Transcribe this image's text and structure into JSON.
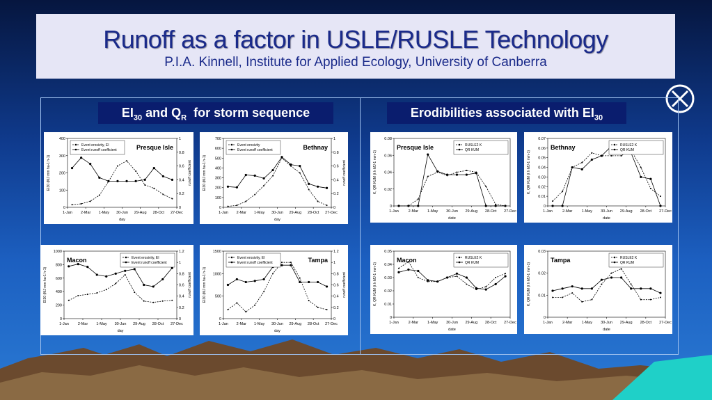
{
  "slide": {
    "title": "Runoff as a factor in USLE/RUSLE Technology",
    "subtitle": "P.I.A. Kinnell, Institute for Applied Ecology, University of Canberra",
    "heading_left": [
      "EI",
      "30",
      " and Q",
      "R",
      "  for storm sequence"
    ],
    "heading_right": [
      "Erodibilities associated with EI",
      "30"
    ]
  },
  "chart_data": [
    {
      "type": "line",
      "annotation": "Presque Isle",
      "annotation_corner": "upper right",
      "legend": "upper left",
      "xlabel": "day",
      "ylabel": "EI30 (MJ mm ha-1 h-1)",
      "y2label": "runoff coefficient",
      "x": [
        15,
        45,
        75,
        105,
        135,
        165,
        195,
        225,
        255,
        285,
        315,
        345
      ],
      "xlim": [
        0,
        360
      ],
      "xticks": [
        {
          "value": 0,
          "label": "1-Jan"
        },
        {
          "value": 60,
          "label": "2-Mar"
        },
        {
          "value": 120,
          "label": "1-May"
        },
        {
          "value": 180,
          "label": "30-Jun"
        },
        {
          "value": 240,
          "label": "29-Aug"
        },
        {
          "value": 300,
          "label": "28-Oct"
        },
        {
          "value": 360,
          "label": "27-Dec"
        }
      ],
      "ylim": [
        0,
        400
      ],
      "yticks": [
        0,
        100,
        200,
        300,
        400
      ],
      "y2lim": [
        0,
        1
      ],
      "y2ticks": [
        0,
        0.2,
        0.4,
        0.6,
        0.8,
        1
      ],
      "series": [
        {
          "name": "Event erosivity, EI",
          "color": "#000000",
          "line_style": "dashed",
          "values": [
            15,
            20,
            35,
            70,
            150,
            240,
            270,
            210,
            130,
            110,
            75,
            50
          ]
        },
        {
          "name": "Event runoff coefficient",
          "color": "#000000",
          "line_style": "solid",
          "axis": "y2",
          "values": [
            0.57,
            0.72,
            0.63,
            0.43,
            0.38,
            0.38,
            0.38,
            0.38,
            0.4,
            0.57,
            0.45,
            0.4
          ]
        }
      ]
    },
    {
      "type": "line",
      "annotation": "Bethnay",
      "annotation_corner": "upper right",
      "legend": "upper left",
      "xlabel": "day",
      "ylabel": "EI30 (MJ mm ha-1 h-1)",
      "y2label": "runoff coefficient",
      "x": [
        15,
        45,
        75,
        105,
        135,
        165,
        195,
        225,
        255,
        285,
        315,
        345
      ],
      "xlim": [
        0,
        360
      ],
      "xticks": [
        {
          "value": 0,
          "label": "1-Jan"
        },
        {
          "value": 60,
          "label": "2-Mar"
        },
        {
          "value": 120,
          "label": "1-May"
        },
        {
          "value": 180,
          "label": "30-Jun"
        },
        {
          "value": 240,
          "label": "29-Aug"
        },
        {
          "value": 300,
          "label": "28-Oct"
        },
        {
          "value": 360,
          "label": "27-Dec"
        }
      ],
      "ylim": [
        0,
        700
      ],
      "yticks": [
        0,
        100,
        200,
        300,
        400,
        500,
        600,
        700
      ],
      "y2lim": [
        0,
        1
      ],
      "y2ticks": [
        0,
        0.2,
        0.4,
        0.6,
        0.8,
        1
      ],
      "series": [
        {
          "name": "Event erosivity",
          "color": "#000000",
          "line_style": "dashed",
          "values": [
            10,
            20,
            60,
            130,
            220,
            320,
            500,
            420,
            350,
            180,
            60,
            20
          ]
        },
        {
          "name": "Event runoff coefficient",
          "color": "#000000",
          "line_style": "solid",
          "axis": "y2",
          "values": [
            0.3,
            0.29,
            0.47,
            0.46,
            0.42,
            0.54,
            0.73,
            0.62,
            0.6,
            0.34,
            0.3,
            0.28
          ]
        }
      ]
    },
    {
      "type": "line",
      "annotation": "Macon",
      "annotation_corner": "upper left",
      "legend": "upper right",
      "xlabel": "day",
      "ylabel": "EI30 (MJ mm ha-1 h-1)",
      "y2label": "runoff coefficient",
      "x": [
        15,
        45,
        75,
        105,
        135,
        165,
        195,
        225,
        255,
        285,
        315,
        345
      ],
      "xlim": [
        0,
        360
      ],
      "xticks": [
        {
          "value": 0,
          "label": "1-Jan"
        },
        {
          "value": 60,
          "label": "2-Mar"
        },
        {
          "value": 120,
          "label": "1-May"
        },
        {
          "value": 180,
          "label": "30-Jun"
        },
        {
          "value": 240,
          "label": "29-Aug"
        },
        {
          "value": 300,
          "label": "28-Oct"
        },
        {
          "value": 360,
          "label": "27-Dec"
        }
      ],
      "ylim": [
        0,
        1000
      ],
      "yticks": [
        0,
        200,
        400,
        600,
        800,
        1000
      ],
      "y2lim": [
        0,
        1.2
      ],
      "y2ticks": [
        0,
        0.2,
        0.4,
        0.6,
        0.8,
        1,
        1.2
      ],
      "series": [
        {
          "name": "Event erosivity, EI",
          "color": "#000000",
          "line_style": "dashed",
          "values": [
            270,
            340,
            360,
            380,
            430,
            520,
            650,
            390,
            260,
            240,
            260,
            270
          ]
        },
        {
          "name": "Event runoff coefficient",
          "color": "#000000",
          "line_style": "solid",
          "axis": "y2",
          "values": [
            0.93,
            0.97,
            0.92,
            0.78,
            0.75,
            0.8,
            0.85,
            0.88,
            0.6,
            0.57,
            0.7,
            0.9
          ]
        }
      ]
    },
    {
      "type": "line",
      "annotation": "Tampa",
      "annotation_corner": "upper right",
      "legend": "upper left",
      "xlabel": "day",
      "ylabel": "EI30 (MJ mm ha-1 h-1)",
      "y2label": "runoff coefficient",
      "x": [
        15,
        45,
        75,
        105,
        135,
        165,
        195,
        225,
        255,
        285,
        315,
        345
      ],
      "xlim": [
        0,
        360
      ],
      "xticks": [
        {
          "value": 0,
          "label": "1-Jan"
        },
        {
          "value": 60,
          "label": "2-Mar"
        },
        {
          "value": 120,
          "label": "1-May"
        },
        {
          "value": 180,
          "label": "30-Jun"
        },
        {
          "value": 240,
          "label": "29-Aug"
        },
        {
          "value": 300,
          "label": "28-Oct"
        },
        {
          "value": 360,
          "label": "27-Dec"
        }
      ],
      "ylim": [
        0,
        1500
      ],
      "yticks": [
        0,
        500,
        1000,
        1500
      ],
      "y2lim": [
        0,
        1.2
      ],
      "y2ticks": [
        0,
        0.2,
        0.4,
        0.6,
        0.8,
        1,
        1.2
      ],
      "series": [
        {
          "name": "Event erosivity, EI",
          "color": "#000000",
          "line_style": "dashed",
          "values": [
            200,
            350,
            150,
            300,
            600,
            1000,
            1250,
            1250,
            900,
            400,
            250,
            200
          ]
        },
        {
          "name": "Event runoff coefficient",
          "color": "#000000",
          "line_style": "solid",
          "axis": "y2",
          "values": [
            0.6,
            0.7,
            0.65,
            0.67,
            0.7,
            0.92,
            0.95,
            0.95,
            0.65,
            0.65,
            0.65,
            0.57
          ]
        }
      ]
    },
    {
      "type": "line",
      "annotation": "Presque Isle",
      "annotation_corner": "upper left",
      "legend": "upper right",
      "xlabel": "date",
      "ylabel": "K, QR KUM (t h MJ-1 mm-1)",
      "x": [
        15,
        45,
        75,
        105,
        135,
        165,
        195,
        225,
        255,
        285,
        315,
        345
      ],
      "xlim": [
        0,
        360
      ],
      "xticks": [
        {
          "value": 0,
          "label": "1-Jan"
        },
        {
          "value": 60,
          "label": "2-Mar"
        },
        {
          "value": 120,
          "label": "1-May"
        },
        {
          "value": 180,
          "label": "30-Jun"
        },
        {
          "value": 240,
          "label": "29-Aug"
        },
        {
          "value": 300,
          "label": "28-Oct"
        },
        {
          "value": 360,
          "label": "27-Dec"
        }
      ],
      "ylim": [
        0,
        0.08
      ],
      "yticks": [
        0,
        0.02,
        0.04,
        0.06,
        0.08
      ],
      "series": [
        {
          "name": "RUSLE2 K",
          "color": "#000000",
          "line_style": "dashed",
          "values": [
            0,
            0,
            0.008,
            0.035,
            0.04,
            0.036,
            0.04,
            0.042,
            0.04,
            0.023,
            0.002,
            0
          ]
        },
        {
          "name": "QR KUM",
          "color": "#000000",
          "line_style": "solid",
          "values": [
            0,
            0,
            0,
            0.061,
            0.041,
            0.037,
            0.037,
            0.037,
            0.039,
            0,
            0,
            0
          ]
        }
      ]
    },
    {
      "type": "line",
      "annotation": "Bethnay",
      "annotation_corner": "upper left",
      "legend": "upper right",
      "xlabel": "date",
      "ylabel": "K, QR KUM (t h MJ-1 mm-1)",
      "x": [
        15,
        45,
        75,
        105,
        135,
        165,
        195,
        225,
        255,
        285,
        315,
        345
      ],
      "xlim": [
        0,
        360
      ],
      "xticks": [
        {
          "value": 0,
          "label": "1-Jan"
        },
        {
          "value": 60,
          "label": "2-Mar"
        },
        {
          "value": 120,
          "label": "1-May"
        },
        {
          "value": 180,
          "label": "30-Jun"
        },
        {
          "value": 240,
          "label": "29-Aug"
        },
        {
          "value": 300,
          "label": "28-Oct"
        },
        {
          "value": 360,
          "label": "27-Dec"
        }
      ],
      "ylim": [
        0,
        0.07
      ],
      "yticks": [
        0,
        0.01,
        0.02,
        0.03,
        0.04,
        0.05,
        0.06,
        0.07
      ],
      "series": [
        {
          "name": "RUSLE2 K",
          "color": "#000000",
          "line_style": "dashed",
          "values": [
            0.005,
            0.015,
            0.04,
            0.045,
            0.055,
            0.052,
            0.052,
            0.052,
            0.058,
            0.04,
            0.018,
            0.01
          ]
        },
        {
          "name": "QR KUM",
          "color": "#000000",
          "line_style": "solid",
          "values": [
            0,
            0,
            0.04,
            0.038,
            0.048,
            0.052,
            0.062,
            0.058,
            0.055,
            0.03,
            0.028,
            0
          ]
        }
      ]
    },
    {
      "type": "line",
      "annotation": "Macon",
      "annotation_corner": "upper left",
      "legend": "upper right",
      "xlabel": "date",
      "ylabel": "K, QR KUM (t h MJ-1 mm-1)",
      "x": [
        15,
        45,
        75,
        105,
        135,
        165,
        195,
        225,
        255,
        285,
        315,
        345
      ],
      "xlim": [
        0,
        360
      ],
      "xticks": [
        {
          "value": 0,
          "label": "1-Jan"
        },
        {
          "value": 60,
          "label": "2-Mar"
        },
        {
          "value": 120,
          "label": "1-May"
        },
        {
          "value": 180,
          "label": "30-Jun"
        },
        {
          "value": 240,
          "label": "29-Aug"
        },
        {
          "value": 300,
          "label": "28-Oct"
        },
        {
          "value": 360,
          "label": "27-Dec"
        }
      ],
      "ylim": [
        0,
        0.05
      ],
      "yticks": [
        0,
        0.01,
        0.02,
        0.03,
        0.04,
        0.05
      ],
      "series": [
        {
          "name": "RUSLE2 K",
          "color": "#000000",
          "line_style": "dashed",
          "values": [
            0.037,
            0.042,
            0.03,
            0.027,
            0.027,
            0.03,
            0.031,
            0.025,
            0.021,
            0.023,
            0.03,
            0.033
          ]
        },
        {
          "name": "QR KUM",
          "color": "#000000",
          "line_style": "solid",
          "values": [
            0.034,
            0.036,
            0.035,
            0.028,
            0.027,
            0.03,
            0.033,
            0.03,
            0.022,
            0.021,
            0.025,
            0.031
          ]
        }
      ]
    },
    {
      "type": "line",
      "annotation": "Tampa",
      "annotation_corner": "upper left",
      "legend": "upper right",
      "xlabel": "date",
      "ylabel": "K, QR KUM (t h MJ-1 mm-1)",
      "x": [
        15,
        45,
        75,
        105,
        135,
        165,
        195,
        225,
        255,
        285,
        315,
        345
      ],
      "xlim": [
        0,
        360
      ],
      "xticks": [
        {
          "value": 0,
          "label": "1-Jan"
        },
        {
          "value": 60,
          "label": "2-Mar"
        },
        {
          "value": 120,
          "label": "1-May"
        },
        {
          "value": 180,
          "label": "30-Jun"
        },
        {
          "value": 240,
          "label": "29-Aug"
        },
        {
          "value": 300,
          "label": "28-Oct"
        },
        {
          "value": 360,
          "label": "27-Dec"
        }
      ],
      "ylim": [
        0,
        0.03
      ],
      "yticks": [
        0,
        0.01,
        0.02,
        0.03
      ],
      "series": [
        {
          "name": "RUSLE2 K",
          "color": "#000000",
          "line_style": "dashed",
          "values": [
            0.009,
            0.009,
            0.011,
            0.007,
            0.008,
            0.015,
            0.02,
            0.022,
            0.015,
            0.008,
            0.008,
            0.009
          ]
        },
        {
          "name": "QR KUM",
          "color": "#000000",
          "line_style": "solid",
          "values": [
            0.012,
            0.013,
            0.014,
            0.013,
            0.013,
            0.017,
            0.018,
            0.018,
            0.013,
            0.013,
            0.013,
            0.011
          ]
        }
      ]
    }
  ]
}
